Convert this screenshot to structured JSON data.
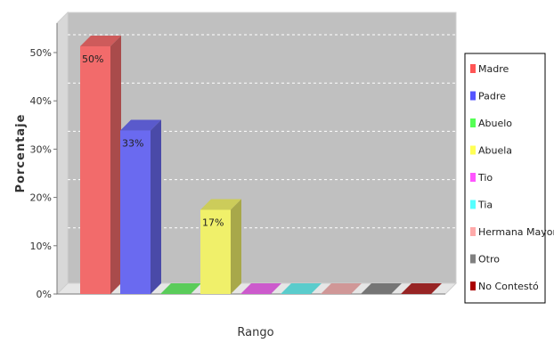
{
  "chart_data": {
    "type": "bar",
    "categories": [
      "Madre",
      "Padre",
      "Abuelo",
      "Abuela",
      "Tio",
      "Tia",
      "Hermana Mayor",
      "Otro",
      "No Contestó"
    ],
    "values": [
      50,
      33,
      0,
      17,
      0,
      0,
      0,
      0,
      0
    ],
    "data_labels": [
      "50%",
      "33%",
      "",
      "17%",
      "",
      "",
      "",
      "",
      ""
    ],
    "colors": [
      "#f26b6b",
      "#6a6af0",
      "#6af06a",
      "#f0f06a",
      "#f06af0",
      "#6af0f0",
      "#f5b2b2",
      "#8a8a8a",
      "#b22a2a"
    ],
    "legend_swatch_colors": [
      "#ff5555",
      "#5555ff",
      "#55ff55",
      "#ffff55",
      "#ff55ff",
      "#55ffff",
      "#ffaaaa",
      "#808080",
      "#aa0000"
    ],
    "xlabel": "Rango",
    "ylabel": "Porcentaje",
    "ylim": [
      0,
      50
    ],
    "yticks": [
      "0%",
      "10%",
      "20%",
      "30%",
      "40%",
      "50%"
    ],
    "ytick_values": [
      0,
      10,
      20,
      30,
      40,
      50
    ],
    "grid": true,
    "legend_position": "right",
    "plot_background": "#c0c0c0"
  }
}
